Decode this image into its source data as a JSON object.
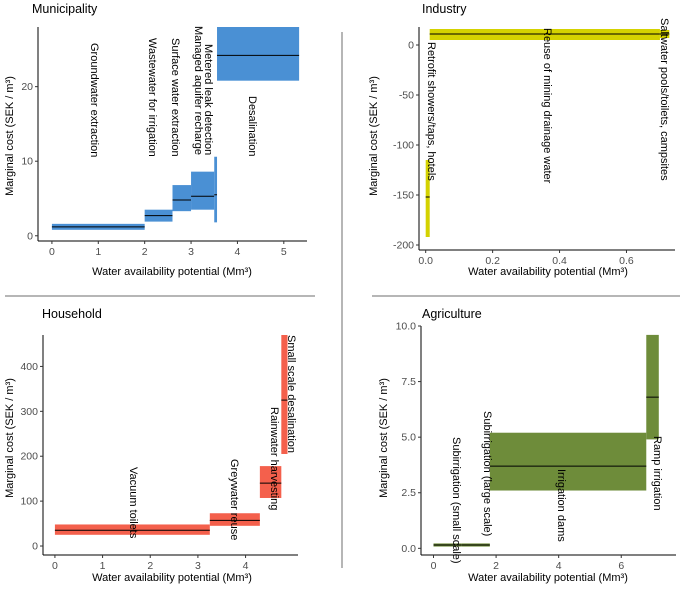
{
  "figure": {
    "description_title": "Marginal cost curves by sector",
    "colors": {
      "municipality": "#4a90d4",
      "industry": "#d4d200",
      "household": "#f4604c",
      "agriculture": "#6e8c3a",
      "median": "#000000"
    }
  },
  "chart_data": [
    {
      "id": "municipality",
      "type": "bar",
      "title": "Municipality",
      "xlabel": "Water availability potential (Mm³)",
      "ylabel": "Marginal cost (SEK / m³)",
      "xlim": [
        -0.3,
        5.5
      ],
      "ylim": [
        -0.7,
        28
      ],
      "xticks": [
        0,
        1,
        2,
        3,
        4,
        5
      ],
      "yticks": [
        0,
        10,
        20
      ],
      "blocks": [
        {
          "label": "Groundwater extraction",
          "x0": 0.0,
          "x1": 2.0,
          "low": 0.8,
          "high": 1.6,
          "median": 1.2
        },
        {
          "label": "Wastewater for irrigation",
          "x0": 2.0,
          "x1": 2.6,
          "low": 1.9,
          "high": 3.5,
          "median": 2.7
        },
        {
          "label": "Surface water extraction",
          "x0": 2.6,
          "x1": 3.0,
          "low": 3.3,
          "high": 6.8,
          "median": 4.8
        },
        {
          "label": "Managed aquifer recharge",
          "x0": 3.0,
          "x1": 3.5,
          "low": 3.5,
          "high": 8.6,
          "median": 5.3
        },
        {
          "label": "Metered leak detection",
          "x0": 3.5,
          "x1": 3.56,
          "low": 1.8,
          "high": 10.6,
          "median": 5.5
        },
        {
          "label": "Desalination",
          "x0": 3.56,
          "x1": 5.33,
          "low": 20.8,
          "high": 28.0,
          "median": 24.2
        }
      ]
    },
    {
      "id": "industry",
      "type": "bar",
      "title": "Industry",
      "xlabel": "Water availability potential (Mm³)",
      "ylabel": "Marginal cost (SEK / m³)",
      "xlim": [
        -0.02,
        0.745
      ],
      "ylim": [
        -205,
        18
      ],
      "xticks": [
        0.0,
        0.2,
        0.4,
        0.6
      ],
      "yticks": [
        -200,
        -150,
        -100,
        -50,
        0
      ],
      "blocks": [
        {
          "label": "Retrofit showers/taps, hotels",
          "x0": 0.0,
          "x1": 0.012,
          "low": -192,
          "high": -115,
          "median": -152
        },
        {
          "label": "Reuse of mining drainage water",
          "x0": 0.012,
          "x1": 0.7,
          "low": 5,
          "high": 16,
          "median": 11
        },
        {
          "label": "Saltwater pools/toilets, campsites",
          "x0": 0.7,
          "x1": 0.728,
          "low": 7,
          "high": 15,
          "median": 11
        }
      ]
    },
    {
      "id": "household",
      "type": "bar",
      "title": "Household",
      "xlabel": "Water availability potential (Mm³)",
      "ylabel": "Marginal cost (SEK / m³)",
      "xlim": [
        -0.25,
        5.1
      ],
      "ylim": [
        -20,
        470
      ],
      "xticks": [
        0,
        1,
        2,
        3,
        4
      ],
      "yticks": [
        0,
        100,
        200,
        300,
        400
      ],
      "blocks": [
        {
          "label": "Vacuum toilets",
          "x0": 0.0,
          "x1": 3.25,
          "low": 25,
          "high": 48,
          "median": 35
        },
        {
          "label": "Greywater reuse",
          "x0": 3.25,
          "x1": 4.3,
          "low": 45,
          "high": 73,
          "median": 57
        },
        {
          "label": "Rainwater harvesting",
          "x0": 4.3,
          "x1": 4.75,
          "low": 107,
          "high": 178,
          "median": 140
        },
        {
          "label": "Small scale desalination",
          "x0": 4.75,
          "x1": 4.88,
          "low": 205,
          "high": 470,
          "median": 325
        }
      ]
    },
    {
      "id": "agriculture",
      "type": "bar",
      "title": "Agriculture",
      "xlabel": "Water availability potential (Mm³)",
      "ylabel": "Marginal cost (SEK / m³)",
      "xlim": [
        -0.4,
        7.75
      ],
      "ylim": [
        -0.3,
        10
      ],
      "xticks": [
        0,
        2,
        4,
        6
      ],
      "yticks": [
        0.0,
        2.5,
        5.0,
        7.5,
        10.0
      ],
      "yticklabels": [
        "0.0",
        "2.5",
        "5.0",
        "7.5",
        "10.0"
      ],
      "blocks": [
        {
          "label": "Subirrigation (small scale)",
          "x0": 0.0,
          "x1": 0.9,
          "low": 0.08,
          "high": 0.22,
          "median": 0.15
        },
        {
          "label": "Subirrigation (large scale)",
          "x0": 0.9,
          "x1": 1.8,
          "low": 0.08,
          "high": 0.22,
          "median": 0.15
        },
        {
          "label": "Irrigation dams",
          "x0": 1.8,
          "x1": 6.8,
          "low": 2.6,
          "high": 5.2,
          "median": 3.7
        },
        {
          "label": "Ramp irrigation",
          "x0": 6.8,
          "x1": 7.2,
          "low": 4.9,
          "high": 9.6,
          "median": 6.8
        }
      ]
    }
  ]
}
